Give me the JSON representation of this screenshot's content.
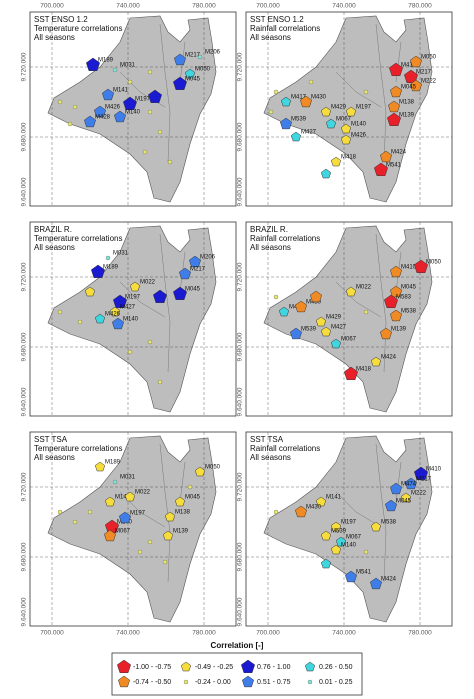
{
  "map_axes": {
    "xticks": [
      {
        "value": 700000,
        "label": "700.000"
      },
      {
        "value": 740000,
        "label": "740.000"
      },
      {
        "value": 780000,
        "label": "780.000"
      }
    ],
    "yticks": [
      {
        "value": 9720000,
        "label": "9.720.000"
      },
      {
        "value": 9680000,
        "label": "9.680.000"
      },
      {
        "value": 9640000,
        "label": "9.640.000"
      }
    ]
  },
  "panels": [
    {
      "title_lines": [
        "SST ENSO 1.2",
        "Temperature correlations",
        "All seasons"
      ],
      "stations": [
        {
          "name": "M189",
          "class": 4
        },
        {
          "name": "M031",
          "class": 7
        },
        {
          "name": "M217",
          "class": 5
        },
        {
          "name": "M206",
          "class": 7
        },
        {
          "name": "M050",
          "class": 6
        },
        {
          "name": "M045",
          "class": 4
        },
        {
          "name": "M141",
          "class": 5
        },
        {
          "name": "M197",
          "class": 4
        },
        {
          "name": "M140",
          "class": 5
        },
        {
          "name": "M426",
          "class": 5
        },
        {
          "name": "M428",
          "class": 5
        },
        {
          "class": 3
        },
        {
          "class": 3
        },
        {
          "class": 3
        },
        {
          "class": 3
        },
        {
          "class": 3
        },
        {
          "class": 3
        },
        {
          "class": 3
        },
        {
          "class": 3
        },
        {
          "class": 3
        },
        {
          "class": 4
        }
      ]
    },
    {
      "title_lines": [
        "SST ENSO 1.2",
        "Rainfall correlations",
        "All seasons"
      ],
      "stations": [
        {
          "name": "M410",
          "class": 0
        },
        {
          "name": "M050",
          "class": 1
        },
        {
          "name": "M217",
          "class": 0
        },
        {
          "name": "M222",
          "class": 1
        },
        {
          "name": "M045",
          "class": 1
        },
        {
          "name": "M138",
          "class": 1
        },
        {
          "name": "M139",
          "class": 0
        },
        {
          "name": "M417",
          "class": 6
        },
        {
          "name": "M430",
          "class": 1
        },
        {
          "name": "M429",
          "class": 2
        },
        {
          "name": "M197",
          "class": 2
        },
        {
          "name": "M067",
          "class": 6
        },
        {
          "name": "M140",
          "class": 2
        },
        {
          "name": "M426",
          "class": 2
        },
        {
          "name": "M427",
          "class": 6
        },
        {
          "name": "M539",
          "class": 5
        },
        {
          "name": "M424",
          "class": 1
        },
        {
          "name": "M418",
          "class": 2
        },
        {
          "name": "M541",
          "class": 0
        },
        {
          "class": 3
        },
        {
          "class": 3
        },
        {
          "class": 3
        },
        {
          "class": 3
        },
        {
          "class": 6
        }
      ]
    },
    {
      "title_lines": [
        "BRAZIL R.",
        "Temperature correlations",
        "All seasons"
      ],
      "stations": [
        {
          "name": "M189",
          "class": 4
        },
        {
          "name": "M031",
          "class": 7
        },
        {
          "name": "M206",
          "class": 5
        },
        {
          "name": "M217",
          "class": 5
        },
        {
          "name": "M045",
          "class": 4
        },
        {
          "name": "M022",
          "class": 2
        },
        {
          "name": "M197",
          "class": 4
        },
        {
          "name": "M427",
          "class": 2
        },
        {
          "name": "M426",
          "class": 6
        },
        {
          "name": "M140",
          "class": 5
        },
        {
          "class": 3
        },
        {
          "class": 3
        },
        {
          "class": 3
        },
        {
          "class": 3
        },
        {
          "class": 3
        },
        {
          "class": 4
        },
        {
          "class": 2
        }
      ]
    },
    {
      "title_lines": [
        "BRAZIL R.",
        "Rainfall correlations",
        "All seasons"
      ],
      "stations": [
        {
          "name": "M410",
          "class": 1
        },
        {
          "name": "M050",
          "class": 0
        },
        {
          "name": "M045",
          "class": 1
        },
        {
          "name": "M022",
          "class": 2
        },
        {
          "name": "M583",
          "class": 0
        },
        {
          "name": "M538",
          "class": 1
        },
        {
          "name": "M417",
          "class": 6
        },
        {
          "name": "M430",
          "class": 1
        },
        {
          "name": "M429",
          "class": 2
        },
        {
          "name": "M427",
          "class": 2
        },
        {
          "name": "M067",
          "class": 6
        },
        {
          "name": "M539",
          "class": 5
        },
        {
          "name": "M139",
          "class": 1
        },
        {
          "name": "M424",
          "class": 2
        },
        {
          "name": "M418",
          "class": 0
        },
        {
          "class": 3
        },
        {
          "class": 3
        },
        {
          "class": 1
        }
      ]
    },
    {
      "title_lines": [
        "SST TSA",
        "Temperature correlations",
        "All seasons"
      ],
      "stations": [
        {
          "name": "M189",
          "class": 2
        },
        {
          "name": "M031",
          "class": 7
        },
        {
          "name": "M050",
          "class": 2
        },
        {
          "name": "M045",
          "class": 2
        },
        {
          "name": "M141",
          "class": 2
        },
        {
          "name": "M022",
          "class": 2
        },
        {
          "name": "M140",
          "class": 0
        },
        {
          "name": "M067",
          "class": 1
        },
        {
          "name": "M197",
          "class": 5
        },
        {
          "name": "M138",
          "class": 2
        },
        {
          "name": "M139",
          "class": 2
        },
        {
          "class": 3
        },
        {
          "class": 3
        },
        {
          "class": 3
        },
        {
          "class": 3
        },
        {
          "class": 3
        },
        {
          "class": 3
        },
        {
          "class": 3
        }
      ]
    },
    {
      "title_lines": [
        "SST TSA",
        "Rainfall correlations",
        "All seasons"
      ],
      "stations": [
        {
          "name": "M410",
          "class": 4
        },
        {
          "name": "M217",
          "class": 5
        },
        {
          "name": "M474",
          "class": 5
        },
        {
          "name": "M222",
          "class": 2
        },
        {
          "name": "M045",
          "class": 5
        },
        {
          "name": "M538",
          "class": 2
        },
        {
          "name": "M141",
          "class": 2
        },
        {
          "name": "M430",
          "class": 1
        },
        {
          "name": "M197",
          "class": 2
        },
        {
          "name": "M539",
          "class": 2
        },
        {
          "name": "M067",
          "class": 6
        },
        {
          "name": "M140",
          "class": 2
        },
        {
          "name": "M541",
          "class": 5
        },
        {
          "name": "M424",
          "class": 5
        },
        {
          "class": 3
        },
        {
          "class": 3
        },
        {
          "class": 6
        }
      ]
    }
  ],
  "legend": {
    "title": "Correlation [-]",
    "classes": [
      {
        "label": "-1.00 - -0.75",
        "color": "#e8202a",
        "shape": "pentagon"
      },
      {
        "label": "-0.74 - -0.50",
        "color": "#f08a24",
        "shape": "pentagon"
      },
      {
        "label": "-0.49 - -0.25",
        "color": "#f6dc3c",
        "shape": "pentagon"
      },
      {
        "label": "-0.24 - 0.00",
        "color": "#e8e86a",
        "shape": "dot"
      },
      {
        "label": "0.76 - 1.00",
        "color": "#1a1ad0",
        "shape": "pentagon"
      },
      {
        "label": "0.51 - 0.75",
        "color": "#3f7ee8",
        "shape": "pentagon"
      },
      {
        "label": "0.26 - 0.50",
        "color": "#3fd6e0",
        "shape": "pentagon"
      },
      {
        "label": "0.01 - 0.25",
        "color": "#7ee8d8",
        "shape": "dot"
      }
    ]
  }
}
